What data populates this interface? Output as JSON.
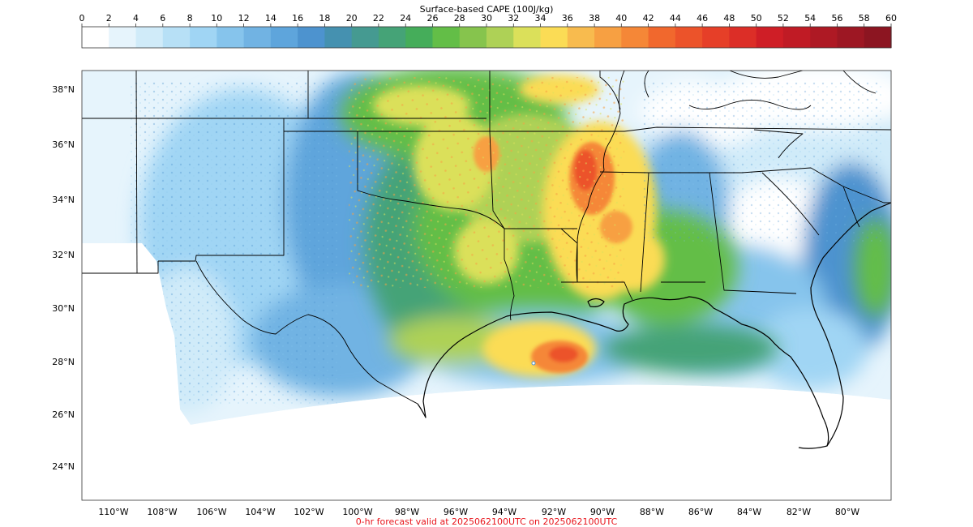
{
  "colorbar": {
    "title": "Surface-based CAPE (100J/kg)",
    "ticks": [
      "0",
      "2",
      "4",
      "6",
      "8",
      "10",
      "12",
      "14",
      "16",
      "18",
      "20",
      "22",
      "24",
      "26",
      "28",
      "30",
      "32",
      "34",
      "36",
      "38",
      "40",
      "42",
      "44",
      "46",
      "48",
      "50",
      "52",
      "54",
      "56",
      "58",
      "60"
    ],
    "colors": [
      "#ffffff",
      "#e6f4fc",
      "#d0ebf9",
      "#b7e0f6",
      "#a0d5f4",
      "#86c4ec",
      "#71b3e3",
      "#5ea5dc",
      "#4d93cf",
      "#4591b0",
      "#459a91",
      "#45a377",
      "#45ad5a",
      "#63be47",
      "#86c44d",
      "#aed156",
      "#dbe05a",
      "#fbdc55",
      "#f8bb4e",
      "#f7a042",
      "#f58737",
      "#f1682d",
      "#ec532a",
      "#e63f28",
      "#dc2e27",
      "#cf1e26",
      "#c01b25",
      "#ae1924",
      "#9d1723",
      "#8c1521"
    ]
  },
  "map": {
    "lat_labels": [
      "38°N",
      "36°N",
      "34°N",
      "32°N",
      "30°N",
      "28°N",
      "26°N",
      "24°N"
    ],
    "lon_labels": [
      "110°W",
      "108°W",
      "106°W",
      "104°W",
      "102°W",
      "100°W",
      "98°W",
      "96°W",
      "94°W",
      "92°W",
      "90°W",
      "88°W",
      "86°W",
      "84°W",
      "82°W",
      "80°W"
    ]
  },
  "footer": {
    "text": "0-hr forecast valid at 2025062100UTC on 2025062100UTC"
  }
}
